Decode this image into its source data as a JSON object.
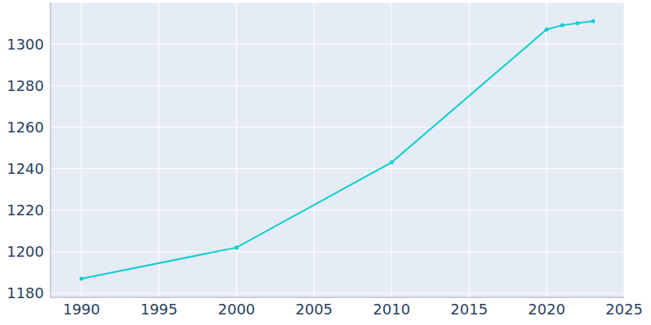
{
  "chart_data": {
    "type": "line",
    "x": [
      1990,
      2000,
      2010,
      2020,
      2021,
      2022,
      2023
    ],
    "values": [
      1187,
      1202,
      1243,
      1307,
      1309,
      1310,
      1311
    ],
    "color": "#0fcfcf",
    "marker": "circle",
    "xlim": [
      1988,
      2025
    ],
    "xticks": [
      1990,
      1995,
      2000,
      2005,
      2010,
      2015,
      2020,
      2025
    ],
    "ylim": [
      1178,
      1320
    ],
    "yticks": [
      1180,
      1200,
      1220,
      1240,
      1260,
      1280,
      1300
    ],
    "grid": true
  }
}
